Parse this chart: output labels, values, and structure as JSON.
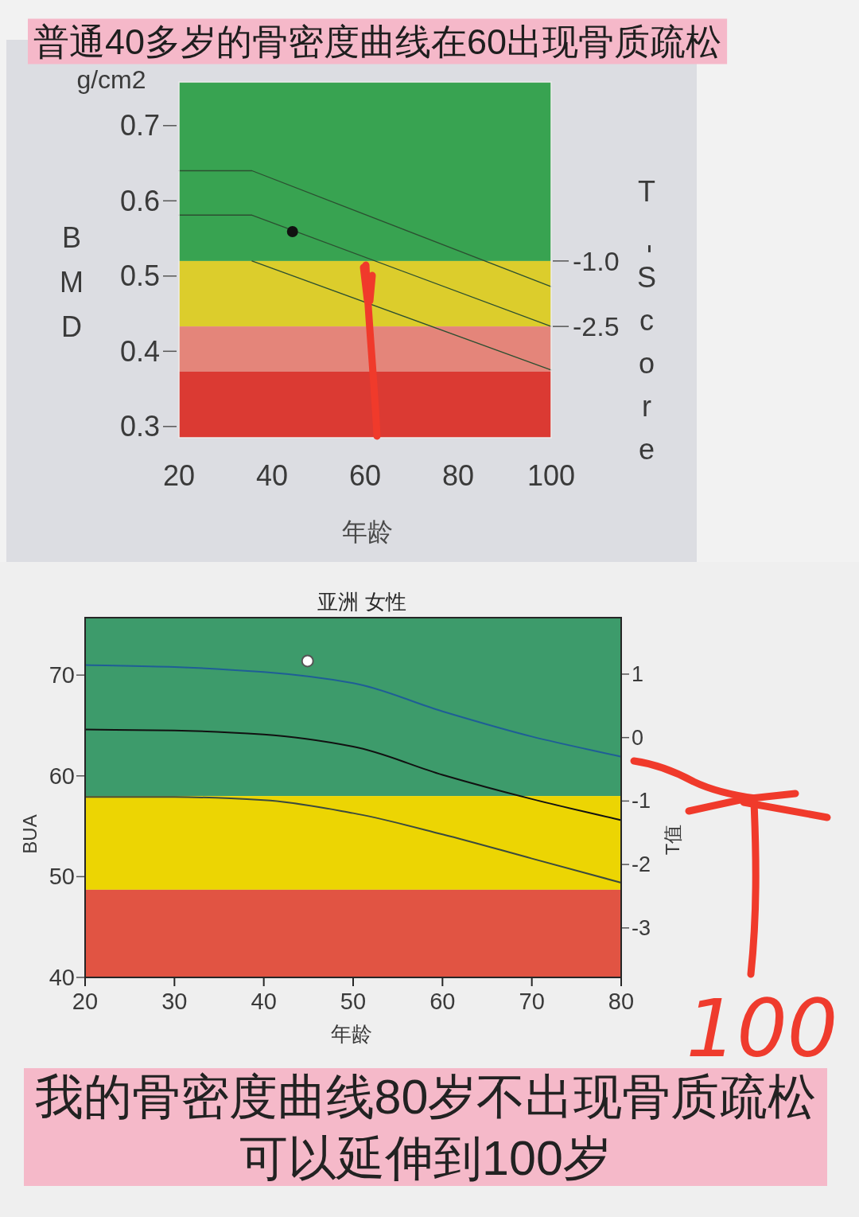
{
  "chart_data": [
    {
      "type": "line",
      "title": "普通40多岁的骨密度曲线在60出现骨质疏松",
      "xlabel": "年龄",
      "ylabel": "BMD",
      "y2label": "T-Score",
      "annotations": [
        "g/cm2"
      ],
      "x": [
        20,
        35.7,
        100
      ],
      "series": [
        {
          "color": "#2c4f31",
          "values": [
            0.64,
            0.64,
            0.486
          ]
        },
        {
          "color": "#2c4f31",
          "values": [
            0.581,
            0.581,
            0.433
          ]
        },
        {
          "color": "#2c4f31",
          "values": [
            null,
            0.52,
            0.375
          ]
        },
        {
          "type": "scatter",
          "marker": "circle",
          "color": "#111111",
          "x": [
            44.4
          ],
          "values": [
            0.559
          ]
        }
      ],
      "bands": [
        {
          "axis": "y",
          "from": 0.52,
          "to": 0.758,
          "color": "#38a351"
        },
        {
          "axis": "y",
          "from": 0.433,
          "to": 0.52,
          "color": "#dccd2c"
        },
        {
          "axis": "y",
          "from": 0.373,
          "to": 0.433,
          "color": "#e4857a"
        },
        {
          "axis": "y",
          "from": 0.285,
          "to": 0.373,
          "color": "#db3a33"
        }
      ],
      "xlim": [
        20,
        100
      ],
      "xticks": [
        20,
        40,
        60,
        80,
        100
      ],
      "ylim": [
        0.285,
        0.758
      ],
      "yticks": [
        0.3,
        0.4,
        0.5,
        0.6,
        0.7
      ],
      "y2lim": [
        -5.05,
        3.1
      ],
      "y2ticks": [
        {
          "value": -1,
          "label": "-1.0"
        },
        {
          "value": -2.5,
          "label": "-2.5"
        }
      ]
    },
    {
      "type": "line",
      "title": "亚洲 女性",
      "xlabel": "年龄",
      "ylabel": "BUA",
      "y2label": "T值",
      "annotations": [
        "100",
        "我的骨密度曲线80岁不出现骨质疏松可以延伸到100岁"
      ],
      "x": [
        20,
        30,
        40,
        50,
        60,
        70,
        80
      ],
      "series": [
        {
          "color": "#1f5e96",
          "values": [
            71.0,
            70.8,
            70.3,
            69.2,
            66.4,
            63.9,
            61.9
          ]
        },
        {
          "color": "#111111",
          "values": [
            64.6,
            64.5,
            64.1,
            62.9,
            60.1,
            57.7,
            55.6
          ]
        },
        {
          "color": "#3b4a3e",
          "values": [
            57.9,
            57.9,
            57.6,
            56.3,
            54.2,
            51.8,
            49.4
          ]
        },
        {
          "type": "scatter",
          "marker": "circle",
          "color": "#ffffff",
          "x": [
            44.9
          ],
          "values": [
            71.4
          ]
        }
      ],
      "bands": [
        {
          "axis": "y",
          "from": 58,
          "to": 75.7,
          "color": "#3d9b6b"
        },
        {
          "axis": "y",
          "from": 48.7,
          "to": 58,
          "color": "#ecd503"
        },
        {
          "axis": "y",
          "from": 40,
          "to": 48.7,
          "color": "#e15443"
        }
      ],
      "xlim": [
        20,
        80
      ],
      "xticks": [
        20,
        30,
        40,
        50,
        60,
        70,
        80
      ],
      "ylim": [
        40,
        75.7
      ],
      "yticks": [
        40,
        50,
        60,
        70
      ],
      "y2lim": [
        -3.78,
        1.89
      ],
      "y2ticks": [
        1,
        0,
        -1,
        -2,
        -3
      ]
    }
  ]
}
